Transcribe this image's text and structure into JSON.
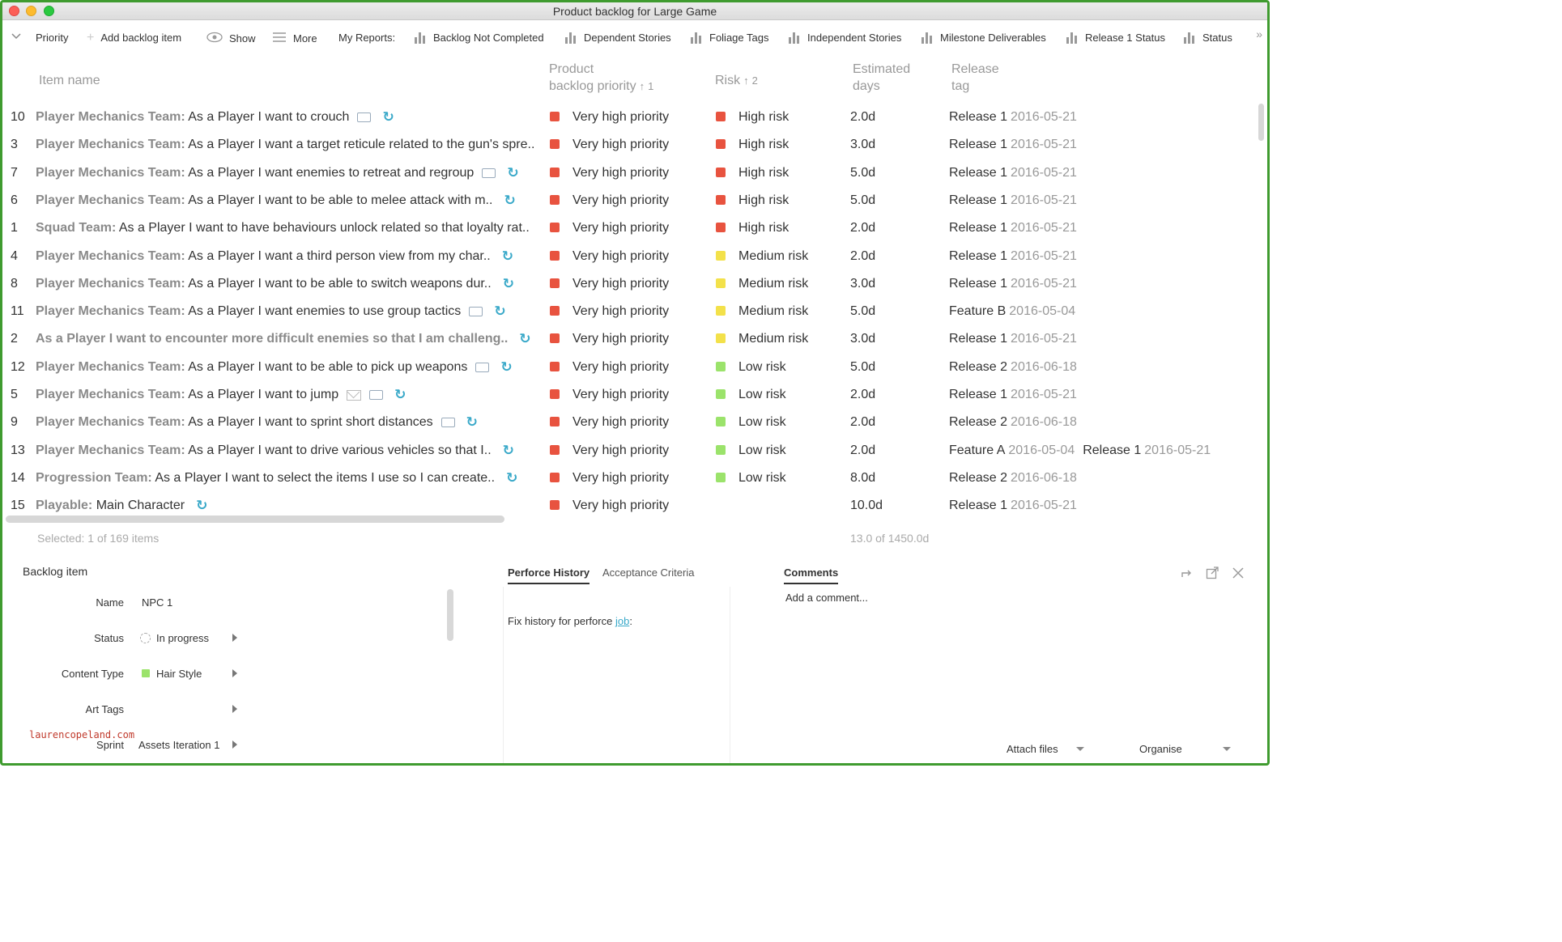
{
  "window": {
    "title": "Product backlog for Large Game"
  },
  "toolbar": {
    "priority": "Priority",
    "add": "Add backlog item",
    "show": "Show",
    "more": "More",
    "my_reports": "My Reports:",
    "reports": [
      "Backlog Not Completed",
      "Dependent Stories",
      "Foliage Tags",
      "Independent Stories",
      "Milestone Deliverables",
      "Release 1 Status",
      "Status"
    ]
  },
  "table": {
    "headers": {
      "item_name": "Item name",
      "priority_line1": "Product",
      "priority_line2": "backlog priority",
      "priority_sort": "1",
      "risk": "Risk",
      "risk_sort": "2",
      "days_line1": "Estimated",
      "days_line2": "days",
      "release_line1": "Release",
      "release_line2": "tag"
    },
    "colors": {
      "priority_red": "#e8533f",
      "risk_high": "#e8533f",
      "risk_medium": "#f3e14a",
      "risk_low": "#9be36b"
    },
    "rows": [
      {
        "id": "10",
        "team": "Player Mechanics Team:",
        "text": "As a Player I want to crouch",
        "priority": "Very high priority",
        "risk": "High risk",
        "risk_level": "high",
        "days": "2.0d",
        "release": "Release 1",
        "date": "2016-05-21",
        "icons": [
          "comment-icon",
          "sync-icon"
        ]
      },
      {
        "id": "3",
        "team": "Player Mechanics Team:",
        "text": "As a Player I want a target reticule related to the gun's spre..",
        "priority": "Very high priority",
        "risk": "High risk",
        "risk_level": "high",
        "days": "3.0d",
        "release": "Release 1",
        "date": "2016-05-21",
        "icons": []
      },
      {
        "id": "7",
        "team": "Player Mechanics Team:",
        "text": "As a Player I want enemies to retreat and regroup",
        "priority": "Very high priority",
        "risk": "High risk",
        "risk_level": "high",
        "days": "5.0d",
        "release": "Release 1",
        "date": "2016-05-21",
        "icons": [
          "comment-icon",
          "sync-icon"
        ]
      },
      {
        "id": "6",
        "team": "Player Mechanics Team:",
        "text": "As a Player I want to be able to melee attack with m..",
        "priority": "Very high priority",
        "risk": "High risk",
        "risk_level": "high",
        "days": "5.0d",
        "release": "Release 1",
        "date": "2016-05-21",
        "icons": [
          "sync-icon"
        ]
      },
      {
        "id": "1",
        "team": "Squad Team:",
        "text": "As a Player I want to have behaviours unlock related so that loyalty rat..",
        "priority": "Very high priority",
        "risk": "High risk",
        "risk_level": "high",
        "days": "2.0d",
        "release": "Release 1",
        "date": "2016-05-21",
        "icons": []
      },
      {
        "id": "4",
        "team": "Player Mechanics Team:",
        "text": "As a Player I want a third person view from my char..",
        "priority": "Very high priority",
        "risk": "Medium risk",
        "risk_level": "medium",
        "days": "2.0d",
        "release": "Release 1",
        "date": "2016-05-21",
        "icons": [
          "sync-icon"
        ]
      },
      {
        "id": "8",
        "team": "Player Mechanics Team:",
        "text": "As a Player I want to be able to switch weapons dur..",
        "priority": "Very high priority",
        "risk": "Medium risk",
        "risk_level": "medium",
        "days": "3.0d",
        "release": "Release 1",
        "date": "2016-05-21",
        "icons": [
          "sync-icon"
        ]
      },
      {
        "id": "11",
        "team": "Player Mechanics Team:",
        "text": "As a Player I want enemies to use group tactics",
        "priority": "Very high priority",
        "risk": "Medium risk",
        "risk_level": "medium",
        "days": "5.0d",
        "release": "Feature B",
        "date": "2016-05-04",
        "icons": [
          "comment-icon",
          "sync-icon"
        ]
      },
      {
        "id": "2",
        "team": "",
        "text": "As a Player I want to encounter more difficult enemies so that I am challeng..",
        "bold_all": true,
        "priority": "Very high priority",
        "risk": "Medium risk",
        "risk_level": "medium",
        "days": "3.0d",
        "release": "Release 1",
        "date": "2016-05-21",
        "icons": [
          "sync-icon"
        ]
      },
      {
        "id": "12",
        "team": "Player Mechanics Team:",
        "text": "As a Player I want to be able to pick up weapons",
        "priority": "Very high priority",
        "risk": "Low risk",
        "risk_level": "low",
        "days": "5.0d",
        "release": "Release 2",
        "date": "2016-06-18",
        "icons": [
          "comment-icon",
          "sync-icon"
        ]
      },
      {
        "id": "5",
        "team": "Player Mechanics Team:",
        "text": "As a Player I want to jump",
        "priority": "Very high priority",
        "risk": "Low risk",
        "risk_level": "low",
        "days": "2.0d",
        "release": "Release 1",
        "date": "2016-05-21",
        "icons": [
          "envelope-icon",
          "comment-icon",
          "sync-icon"
        ]
      },
      {
        "id": "9",
        "team": "Player Mechanics Team:",
        "text": "As a Player I want to sprint short distances",
        "priority": "Very high priority",
        "risk": "Low risk",
        "risk_level": "low",
        "days": "2.0d",
        "release": "Release 2",
        "date": "2016-06-18",
        "icons": [
          "comment-icon",
          "sync-icon"
        ]
      },
      {
        "id": "13",
        "team": "Player Mechanics Team:",
        "text": "As a Player I want to drive various vehicles so that I..",
        "priority": "Very high priority",
        "risk": "Low risk",
        "risk_level": "low",
        "days": "2.0d",
        "release": "Feature A",
        "date": "2016-05-04",
        "release2": "Release 1",
        "date2": "2016-05-21",
        "icons": [
          "sync-icon"
        ]
      },
      {
        "id": "14",
        "team": "Progression Team:",
        "text": "As a Player I want to select the items I use so I can create..",
        "priority": "Very high priority",
        "risk": "Low risk",
        "risk_level": "low",
        "days": "8.0d",
        "release": "Release 2",
        "date": "2016-06-18",
        "icons": [
          "sync-icon"
        ]
      },
      {
        "id": "15",
        "team": "Playable:",
        "text": "Main Character",
        "priority": "Very high priority",
        "risk": "",
        "risk_level": "none",
        "days": "10.0d",
        "release": "Release 1",
        "date": "2016-05-21",
        "icons": [
          "sync-icon"
        ]
      }
    ]
  },
  "footer": {
    "selected": "Selected: 1 of 169 items",
    "sum": "13.0 of 1450.0d"
  },
  "detail": {
    "title": "Backlog item",
    "fields": {
      "name_label": "Name",
      "name_value": "NPC 1",
      "status_label": "Status",
      "status_value": "In progress",
      "content_type_label": "Content Type",
      "content_type_value": "Hair Style",
      "art_tags_label": "Art Tags",
      "art_tags_value": "",
      "sprint_label": "Sprint",
      "sprint_value": "Assets Iteration 1"
    },
    "watermark": "laurencopeland.com"
  },
  "history": {
    "tab_active": "Perforce History",
    "tab_other": "Acceptance Criteria",
    "text": "Fix history for perforce",
    "link": "job",
    "suffix": ":"
  },
  "comments": {
    "tab": "Comments",
    "placeholder": "Add a comment...",
    "attach": "Attach files",
    "organise": "Organise"
  }
}
